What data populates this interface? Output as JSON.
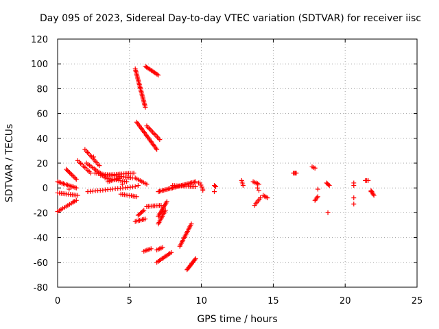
{
  "chart_data": {
    "type": "scatter",
    "title": "Day 095 of 2023, Sidereal Day-to-day VTEC variation (SDTVAR) for receiver iisc",
    "xlabel": "GPS time / hours",
    "ylabel": "SDTVAR / TECUs",
    "xlim": [
      0,
      25
    ],
    "ylim": [
      -80,
      120
    ],
    "xticks": [
      0,
      5,
      10,
      15,
      20,
      25
    ],
    "yticks": [
      -80,
      -60,
      -40,
      -20,
      0,
      20,
      40,
      60,
      80,
      100,
      120
    ],
    "grid": true,
    "marker": "+",
    "marker_color": "#ff0000",
    "segments": [
      {
        "from": [
          0.0,
          5
        ],
        "to": [
          1.3,
          0
        ],
        "n": 14
      },
      {
        "from": [
          0.0,
          -4
        ],
        "to": [
          1.4,
          -6
        ],
        "n": 12
      },
      {
        "from": [
          0.0,
          -19
        ],
        "to": [
          1.3,
          -10
        ],
        "n": 12
      },
      {
        "from": [
          0.6,
          15
        ],
        "to": [
          1.3,
          7
        ],
        "n": 10
      },
      {
        "from": [
          1.4,
          22
        ],
        "to": [
          2.3,
          12
        ],
        "n": 10
      },
      {
        "from": [
          1.9,
          31
        ],
        "to": [
          2.9,
          18
        ],
        "n": 12
      },
      {
        "from": [
          2.0,
          20
        ],
        "to": [
          3.2,
          10
        ],
        "n": 12
      },
      {
        "from": [
          2.6,
          12
        ],
        "to": [
          5.2,
          8
        ],
        "n": 22
      },
      {
        "from": [
          3.0,
          10
        ],
        "to": [
          5.3,
          12
        ],
        "n": 20
      },
      {
        "from": [
          3.3,
          8
        ],
        "to": [
          4.8,
          5
        ],
        "n": 12
      },
      {
        "from": [
          3.5,
          5
        ],
        "to": [
          4.3,
          8
        ],
        "n": 8
      },
      {
        "from": [
          2.1,
          -3
        ],
        "to": [
          5.4,
          1
        ],
        "n": 20
      },
      {
        "from": [
          4.4,
          -5
        ],
        "to": [
          5.5,
          -7
        ],
        "n": 10
      },
      {
        "from": [
          5.4,
          8
        ],
        "to": [
          6.2,
          3
        ],
        "n": 8
      },
      {
        "from": [
          5.4,
          96
        ],
        "to": [
          6.1,
          65
        ],
        "n": 30
      },
      {
        "from": [
          6.1,
          98
        ],
        "to": [
          7.0,
          91
        ],
        "n": 12
      },
      {
        "from": [
          5.5,
          53
        ],
        "to": [
          6.9,
          31
        ],
        "n": 22
      },
      {
        "from": [
          6.2,
          50
        ],
        "to": [
          7.1,
          39
        ],
        "n": 12
      },
      {
        "from": [
          5.4,
          -27
        ],
        "to": [
          6.1,
          -25
        ],
        "n": 8
      },
      {
        "from": [
          5.6,
          -22
        ],
        "to": [
          6.0,
          -18
        ],
        "n": 6
      },
      {
        "from": [
          6.2,
          -15
        ],
        "to": [
          7.2,
          -14
        ],
        "n": 10
      },
      {
        "from": [
          6.0,
          -51
        ],
        "to": [
          6.5,
          -49
        ],
        "n": 6
      },
      {
        "from": [
          7.0,
          -23
        ],
        "to": [
          7.6,
          -11
        ],
        "n": 12
      },
      {
        "from": [
          7.0,
          -29
        ],
        "to": [
          7.5,
          -18
        ],
        "n": 10
      },
      {
        "from": [
          6.9,
          -60
        ],
        "to": [
          7.9,
          -52
        ],
        "n": 12
      },
      {
        "from": [
          6.9,
          -50
        ],
        "to": [
          7.3,
          -48
        ],
        "n": 5
      },
      {
        "from": [
          7.0,
          -3
        ],
        "to": [
          9.6,
          5
        ],
        "n": 30
      },
      {
        "from": [
          8.0,
          2
        ],
        "to": [
          9.6,
          1
        ],
        "n": 14
      },
      {
        "from": [
          8.5,
          -47
        ],
        "to": [
          9.3,
          -29
        ],
        "n": 16
      },
      {
        "from": [
          9.0,
          -66
        ],
        "to": [
          9.6,
          -57
        ],
        "n": 12
      },
      {
        "from": [
          9.9,
          4
        ],
        "to": [
          10.1,
          -1
        ],
        "n": 4
      },
      {
        "from": [
          10.9,
          2
        ],
        "to": [
          11.0,
          1
        ],
        "n": 3
      },
      {
        "from": [
          12.8,
          6
        ],
        "to": [
          12.9,
          2
        ],
        "n": 4
      },
      {
        "from": [
          13.6,
          5
        ],
        "to": [
          14.0,
          3
        ],
        "n": 5
      },
      {
        "from": [
          13.7,
          -14
        ],
        "to": [
          14.1,
          -8
        ],
        "n": 6
      },
      {
        "from": [
          14.3,
          -6
        ],
        "to": [
          14.6,
          -8
        ],
        "n": 4
      },
      {
        "from": [
          16.4,
          12
        ],
        "to": [
          16.6,
          12
        ],
        "n": 4
      },
      {
        "from": [
          17.7,
          17
        ],
        "to": [
          17.9,
          16
        ],
        "n": 3
      },
      {
        "from": [
          17.9,
          -10
        ],
        "to": [
          18.1,
          -7
        ],
        "n": 4
      },
      {
        "from": [
          18.7,
          4
        ],
        "to": [
          18.9,
          2
        ],
        "n": 4
      },
      {
        "from": [
          21.4,
          6
        ],
        "to": [
          21.6,
          6
        ],
        "n": 3
      },
      {
        "from": [
          21.8,
          -2
        ],
        "to": [
          22.0,
          -6
        ],
        "n": 5
      }
    ],
    "points": [
      [
        0.8,
        -1
      ],
      [
        1.1,
        -11
      ],
      [
        2.5,
        25
      ],
      [
        4.5,
        3
      ],
      [
        5.6,
        2
      ],
      [
        9.8,
        4
      ],
      [
        10.1,
        -2
      ],
      [
        10.9,
        -3
      ],
      [
        13.9,
        0
      ],
      [
        14.0,
        -2
      ],
      [
        18.1,
        -1
      ],
      [
        18.8,
        -20
      ],
      [
        20.6,
        4
      ],
      [
        20.6,
        2
      ],
      [
        20.6,
        -8
      ],
      [
        20.6,
        -13
      ],
      [
        21.8,
        -3
      ]
    ]
  }
}
